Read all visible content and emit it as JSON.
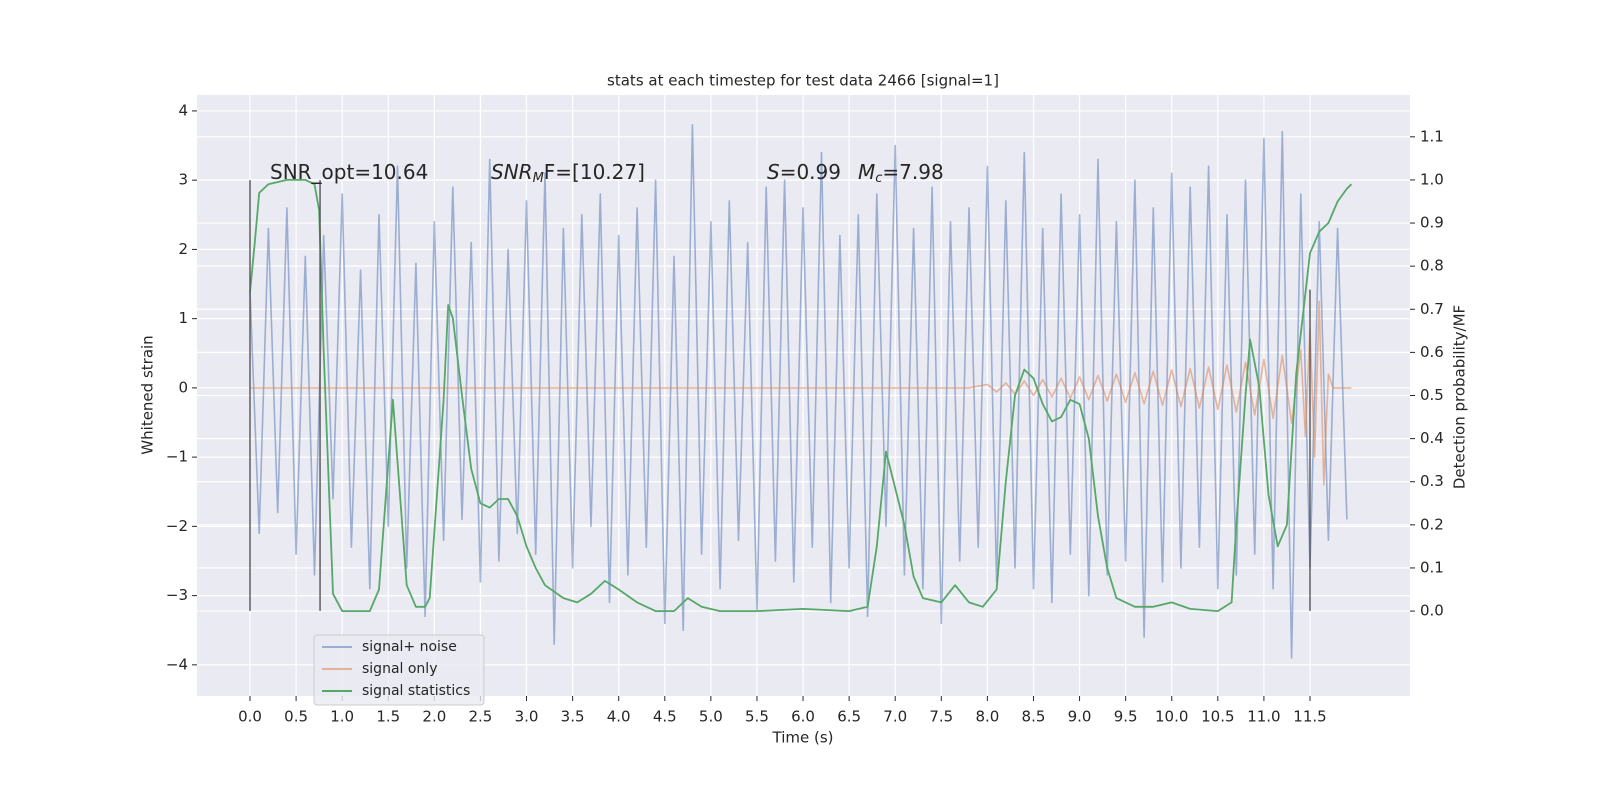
{
  "chart_data": {
    "type": "line",
    "title": "stats at each timestep for test data 2466 [signal=1]",
    "xlabel": "Time (s)",
    "ylabel": "Whitened strain",
    "y2label": "Detection probability/MF",
    "annotations": [
      [
        "SNR_opt=10.64"
      ],
      [
        "SNR",
        "M",
        "F=[10.27]"
      ],
      [
        "S",
        "=0.99"
      ],
      [
        "M",
        "c",
        "=7.98"
      ]
    ],
    "xlim": [
      -0.575,
      12.585
    ],
    "ylim": [
      -4.45,
      4.23
    ],
    "y2lim": [
      -0.197,
      1.197
    ],
    "xticks": [
      {
        "value": 0,
        "label": "0.0"
      },
      0.5,
      {
        "value": 1,
        "label": "1.0"
      },
      1.5,
      {
        "value": 2,
        "label": "2.0"
      },
      2.5,
      {
        "value": 3,
        "label": "3.0"
      },
      3.5,
      {
        "value": 4,
        "label": "4.0"
      },
      4.5,
      {
        "value": 5,
        "label": "5.0"
      },
      5.5,
      {
        "value": 6,
        "label": "6.0"
      },
      6.5,
      {
        "value": 7,
        "label": "7.0"
      },
      7.5,
      {
        "value": 8,
        "label": "8.0"
      },
      8.5,
      {
        "value": 9,
        "label": "9.0"
      },
      9.5,
      {
        "value": 10,
        "label": "10.0"
      },
      10.5,
      {
        "value": 11,
        "label": "11.0"
      },
      11.5
    ],
    "yticks": [
      {
        "value": -4,
        "label": "−4"
      },
      {
        "value": -3,
        "label": "−3"
      },
      {
        "value": -2,
        "label": "−2"
      },
      {
        "value": -1,
        "label": "−1"
      },
      0,
      1,
      2,
      3,
      4
    ],
    "y2ticks": [
      {
        "value": 0,
        "label": "0.0"
      },
      0.1,
      0.2,
      0.3,
      0.4,
      0.5,
      0.6,
      0.7,
      0.8,
      0.9,
      {
        "value": 1,
        "label": "1.0"
      },
      1.1
    ],
    "grid": true,
    "legend": "lower left",
    "series": [
      {
        "name": "signal+ noise",
        "color": "#4c72b0",
        "x": [
          0,
          0.1,
          0.2,
          0.3,
          0.4,
          0.5,
          0.6,
          0.7,
          0.8,
          0.9,
          1,
          1.1,
          1.2,
          1.3,
          1.4,
          1.5,
          1.6,
          1.7,
          1.8,
          1.9,
          2,
          2.1,
          2.2,
          2.3,
          2.4,
          2.5,
          2.6,
          2.7,
          2.8,
          2.9,
          3,
          3.1,
          3.2,
          3.3,
          3.4,
          3.5,
          3.6,
          3.7,
          3.8,
          3.9,
          4,
          4.1,
          4.2,
          4.3,
          4.4,
          4.5,
          4.6,
          4.7,
          4.8,
          4.9,
          5,
          5.1,
          5.2,
          5.3,
          5.4,
          5.5,
          5.6,
          5.7,
          5.8,
          5.9,
          6,
          6.1,
          6.2,
          6.3,
          6.4,
          6.5,
          6.6,
          6.7,
          6.8,
          6.9,
          7,
          7.1,
          7.2,
          7.3,
          7.4,
          7.5,
          7.6,
          7.7,
          7.8,
          7.9,
          8,
          8.1,
          8.2,
          8.3,
          8.4,
          8.5,
          8.6,
          8.7,
          8.8,
          8.9,
          9,
          9.1,
          9.2,
          9.3,
          9.4,
          9.5,
          9.6,
          9.7,
          9.8,
          9.9,
          10,
          10.1,
          10.2,
          10.3,
          10.4,
          10.5,
          10.6,
          10.7,
          10.8,
          10.9,
          11,
          11.1,
          11.2,
          11.3,
          11.4,
          11.5,
          11.6,
          11.7,
          11.8,
          11.9
        ],
        "values": [
          1.4,
          -2.1,
          2.3,
          -1.8,
          2.6,
          -2.4,
          1.9,
          -2.7,
          2.2,
          -1.6,
          2.8,
          -2.3,
          1.7,
          -2.9,
          2.5,
          -2.0,
          3.2,
          -2.6,
          1.8,
          -3.3,
          2.4,
          -2.2,
          2.9,
          -1.9,
          2.1,
          -2.8,
          3.3,
          -2.5,
          2.0,
          -2.1,
          2.7,
          -2.4,
          3.1,
          -3.7,
          2.3,
          -2.6,
          2.5,
          -2.0,
          2.8,
          -3.1,
          2.2,
          -2.7,
          2.6,
          -2.3,
          3.0,
          -3.4,
          1.9,
          -3.5,
          3.8,
          -2.4,
          2.4,
          -2.9,
          2.7,
          -2.2,
          2.1,
          -3.2,
          2.9,
          -2.5,
          3.0,
          -2.8,
          2.6,
          -2.3,
          3.4,
          -3.1,
          2.2,
          -2.6,
          2.5,
          -3.3,
          2.8,
          -2.0,
          3.5,
          -2.7,
          2.3,
          -2.9,
          2.9,
          -3.4,
          2.4,
          -2.5,
          2.6,
          -2.3,
          3.2,
          -2.8,
          2.7,
          -2.6,
          3.4,
          -2.9,
          2.3,
          -3.1,
          2.8,
          -2.4,
          2.5,
          -3.0,
          3.3,
          -2.7,
          2.4,
          -2.5,
          3.0,
          -3.6,
          2.6,
          -2.8,
          3.1,
          -2.6,
          2.9,
          -2.3,
          3.2,
          -2.9,
          2.5,
          -2.7,
          3.0,
          -2.4,
          3.6,
          -2.9,
          3.7,
          -3.9,
          2.8,
          -2.6,
          2.4,
          -2.2,
          2.3,
          -1.9
        ]
      },
      {
        "name": "signal only",
        "color": "#dd8452",
        "x": [
          0,
          7.8,
          8,
          8.1,
          8.2,
          8.3,
          8.4,
          8.5,
          8.6,
          8.7,
          8.8,
          8.9,
          9,
          9.1,
          9.2,
          9.3,
          9.4,
          9.5,
          9.6,
          9.7,
          9.8,
          9.9,
          10,
          10.1,
          10.2,
          10.3,
          10.4,
          10.5,
          10.6,
          10.7,
          10.8,
          10.9,
          11,
          11.1,
          11.2,
          11.3,
          11.4,
          11.45,
          11.5,
          11.55,
          11.6,
          11.65,
          11.7,
          11.75,
          11.95
        ],
        "values": [
          0,
          0,
          0.05,
          -0.06,
          0.07,
          -0.09,
          0.1,
          -0.11,
          0.12,
          -0.13,
          0.14,
          -0.15,
          0.16,
          -0.17,
          0.18,
          -0.19,
          0.2,
          -0.21,
          0.22,
          -0.23,
          0.24,
          -0.25,
          0.26,
          -0.27,
          0.28,
          -0.29,
          0.3,
          -0.31,
          0.33,
          -0.35,
          0.37,
          -0.39,
          0.41,
          -0.44,
          0.47,
          -0.51,
          0.55,
          -0.7,
          0.85,
          -1.0,
          1.25,
          -1.4,
          0.2,
          0,
          0
        ]
      },
      {
        "name": "signal statistics",
        "color": "#55a868",
        "axis": "y2",
        "x": [
          0,
          0.05,
          0.1,
          0.2,
          0.4,
          0.6,
          0.7,
          0.75,
          0.8,
          0.9,
          1,
          1.3,
          1.4,
          1.55,
          1.7,
          1.8,
          1.9,
          1.95,
          2.1,
          2.15,
          2.2,
          2.3,
          2.4,
          2.5,
          2.6,
          2.7,
          2.8,
          2.9,
          3,
          3.1,
          3.2,
          3.4,
          3.55,
          3.7,
          3.85,
          4,
          4.2,
          4.4,
          4.6,
          4.75,
          4.9,
          5.1,
          5.5,
          6,
          6.5,
          6.7,
          6.8,
          6.9,
          7.1,
          7.2,
          7.3,
          7.5,
          7.65,
          7.8,
          7.95,
          8.1,
          8.2,
          8.3,
          8.4,
          8.5,
          8.6,
          8.7,
          8.8,
          8.9,
          9,
          9.1,
          9.2,
          9.3,
          9.4,
          9.6,
          9.8,
          10,
          10.2,
          10.5,
          10.65,
          10.7,
          10.8,
          10.85,
          10.95,
          11.05,
          11.15,
          11.25,
          11.35,
          11.5,
          11.6,
          11.7,
          11.8,
          11.9,
          11.95
        ],
        "values": [
          0.74,
          0.85,
          0.97,
          0.99,
          1.0,
          1.0,
          0.99,
          0.93,
          0.6,
          0.04,
          0.0,
          0.0,
          0.05,
          0.49,
          0.06,
          0.01,
          0.01,
          0.03,
          0.49,
          0.71,
          0.68,
          0.5,
          0.33,
          0.25,
          0.24,
          0.26,
          0.26,
          0.22,
          0.15,
          0.1,
          0.06,
          0.03,
          0.02,
          0.04,
          0.07,
          0.05,
          0.02,
          0.0,
          0.0,
          0.03,
          0.01,
          0.0,
          0.0,
          0.005,
          0.0,
          0.01,
          0.15,
          0.37,
          0.2,
          0.08,
          0.03,
          0.02,
          0.06,
          0.02,
          0.01,
          0.05,
          0.3,
          0.5,
          0.56,
          0.54,
          0.48,
          0.44,
          0.45,
          0.49,
          0.48,
          0.4,
          0.22,
          0.1,
          0.03,
          0.01,
          0.01,
          0.02,
          0.005,
          0.0,
          0.02,
          0.2,
          0.5,
          0.63,
          0.52,
          0.27,
          0.15,
          0.2,
          0.55,
          0.83,
          0.88,
          0.9,
          0.95,
          0.98,
          0.99
        ]
      }
    ],
    "vlines": [
      {
        "x": 0,
        "ymin": -3.22,
        "ymax": 3.0
      },
      {
        "x": 0.76,
        "ymin": -3.22,
        "ymax": 3.0
      },
      {
        "x": 11.5,
        "ymin": -3.22,
        "ymax": 1.42
      }
    ]
  }
}
